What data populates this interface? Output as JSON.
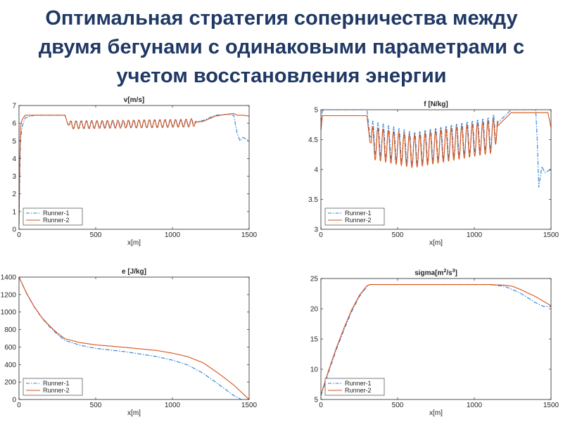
{
  "title": "Оптимальная стратегия соперничества между\nдвумя бегунами с одинаковыми параметрами с\nучетом восстановления  энергии",
  "colors": {
    "runner1": "#2a7fd4",
    "runner2": "#d95319",
    "axis": "#262626"
  },
  "chart_data": [
    {
      "type": "line",
      "title": "v[m/s]",
      "xlabel": "x[m]",
      "ylabel": "",
      "xlim": [
        0,
        1500
      ],
      "ylim": [
        0,
        7
      ],
      "xticks": [
        0,
        500,
        1000,
        1500
      ],
      "yticks": [
        0,
        1,
        2,
        3,
        4,
        5,
        6,
        7
      ],
      "legend": "bottom-left",
      "series": [
        {
          "name": "Runner-1",
          "style": "dashdot",
          "x": [
            0,
            5,
            10,
            20,
            40,
            100,
            200,
            300,
            320,
            1100,
            1200,
            1280,
            1350,
            1400,
            1420,
            1440,
            1460,
            1480,
            1500
          ],
          "y": [
            0.3,
            3,
            5,
            5.8,
            6.3,
            6.45,
            6.45,
            6.45,
            5.9,
            6.0,
            6.15,
            6.45,
            6.5,
            6.45,
            5.5,
            5.0,
            5.2,
            5.1,
            5.0
          ]
        },
        {
          "name": "Runner-2",
          "style": "solid",
          "x": [
            0,
            5,
            10,
            20,
            40,
            100,
            200,
            300,
            320,
            1100,
            1200,
            1280,
            1350,
            1400,
            1420,
            1460,
            1500
          ],
          "y": [
            0.2,
            4,
            5.8,
            6.2,
            6.45,
            6.45,
            6.45,
            6.45,
            5.9,
            6.0,
            6.1,
            6.4,
            6.5,
            6.55,
            6.45,
            6.45,
            6.4
          ]
        }
      ],
      "oscillation": {
        "x_range": [
          330,
          1150
        ],
        "amplitude": 0.22,
        "cycles": 24,
        "series": [
          0,
          1
        ]
      }
    },
    {
      "type": "line",
      "title": "f [N/kg]",
      "xlabel": "x[m]",
      "ylabel": "",
      "xlim": [
        0,
        1500
      ],
      "ylim": [
        3,
        5
      ],
      "xticks": [
        0,
        500,
        1000,
        1500
      ],
      "yticks": [
        3,
        3.5,
        4,
        4.5,
        5
      ],
      "legend": "bottom-left",
      "series": [
        {
          "name": "Runner-1",
          "style": "dashdot",
          "x": [
            0,
            10,
            20,
            300,
            320,
            600,
            1120,
            1140,
            1200,
            1240,
            1400,
            1410,
            1420,
            1440,
            1460,
            1500
          ],
          "y": [
            4.8,
            4.98,
            5.0,
            5.0,
            4.55,
            4.35,
            4.62,
            4.75,
            4.9,
            5.0,
            5.0,
            4.5,
            3.7,
            4.05,
            3.95,
            4.0
          ]
        },
        {
          "name": "Runner-2",
          "style": "solid",
          "x": [
            0,
            10,
            20,
            300,
            320,
            600,
            1120,
            1140,
            1200,
            1240,
            1400,
            1460,
            1480,
            1500
          ],
          "y": [
            4.65,
            4.9,
            4.9,
            4.9,
            4.45,
            4.3,
            4.55,
            4.7,
            4.85,
            4.95,
            4.95,
            4.95,
            4.95,
            4.7
          ]
        }
      ],
      "oscillation": {
        "x_range": [
          330,
          1150
        ],
        "amplitude": 0.27,
        "cycles": 24,
        "series": [
          0,
          1
        ]
      }
    },
    {
      "type": "line",
      "title": "e [J/kg]",
      "xlabel": "x[m]",
      "ylabel": "",
      "xlim": [
        0,
        1500
      ],
      "ylim": [
        0,
        1400
      ],
      "xticks": [
        0,
        500,
        1000,
        1500
      ],
      "yticks": [
        0,
        200,
        400,
        600,
        800,
        1000,
        1200,
        1400
      ],
      "legend": "bottom-left",
      "series": [
        {
          "name": "Runner-1",
          "style": "dashdot",
          "x": [
            0,
            50,
            100,
            150,
            200,
            250,
            300,
            400,
            500,
            700,
            900,
            1000,
            1100,
            1200,
            1300,
            1400,
            1450
          ],
          "y": [
            1400,
            1210,
            1055,
            930,
            830,
            745,
            675,
            620,
            585,
            545,
            490,
            450,
            395,
            300,
            175,
            45,
            0
          ]
        },
        {
          "name": "Runner-2",
          "style": "solid",
          "x": [
            0,
            50,
            100,
            150,
            200,
            250,
            300,
            400,
            500,
            700,
            900,
            1000,
            1100,
            1200,
            1300,
            1400,
            1500
          ],
          "y": [
            1400,
            1215,
            1060,
            935,
            840,
            760,
            695,
            650,
            625,
            595,
            560,
            530,
            490,
            420,
            300,
            165,
            0
          ]
        }
      ]
    },
    {
      "type": "line",
      "title": "sigma[m²/s³]",
      "title_parts": {
        "prefix": "sigma[m",
        "sup1": "2",
        "middle": "/s",
        "sup2": "3",
        "suffix": "]"
      },
      "xlabel": "x[m]",
      "ylabel": "",
      "xlim": [
        0,
        1500
      ],
      "ylim": [
        5,
        25
      ],
      "xticks": [
        0,
        500,
        1000,
        1500
      ],
      "yticks": [
        5,
        10,
        15,
        20,
        25
      ],
      "legend": "bottom-left",
      "series": [
        {
          "name": "Runner-1",
          "style": "dashdot",
          "x": [
            0,
            50,
            100,
            150,
            200,
            250,
            300,
            320,
            1100,
            1200,
            1300,
            1400,
            1450,
            1500
          ],
          "y": [
            5.6,
            9.5,
            13.2,
            16.5,
            19.5,
            22.0,
            23.7,
            24.0,
            24.0,
            23.7,
            22.6,
            21.0,
            20.4,
            20.4
          ]
        },
        {
          "name": "Runner-2",
          "style": "solid",
          "x": [
            0,
            50,
            100,
            150,
            200,
            250,
            300,
            320,
            1100,
            1200,
            1250,
            1300,
            1400,
            1500
          ],
          "y": [
            5.8,
            9.8,
            13.5,
            16.8,
            19.8,
            22.2,
            23.8,
            24.0,
            24.0,
            23.9,
            23.7,
            23.2,
            22.0,
            20.5
          ]
        }
      ]
    }
  ]
}
